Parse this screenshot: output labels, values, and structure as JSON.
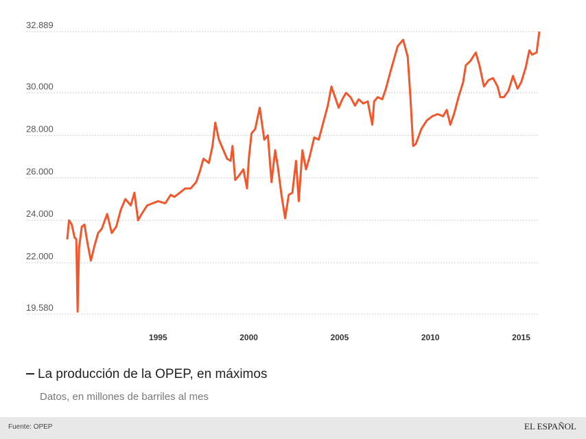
{
  "chart_data": {
    "type": "line",
    "title": "La producción de la OPEP, en máximos",
    "subtitle": "Datos, en millones de barriles al mes",
    "source": "Fuente: OPEP",
    "brand": "EL ESPAÑOL",
    "color": "#f2562a",
    "grid": true,
    "xlim": [
      1990,
      2016
    ],
    "xticks": [
      1995,
      2000,
      2005,
      2010,
      2015
    ],
    "ylim": [
      19580,
      32889
    ],
    "yticks": [
      {
        "value": 19580,
        "label": "19.580"
      },
      {
        "value": 22000,
        "label": "22.000"
      },
      {
        "value": 24000,
        "label": "24.000"
      },
      {
        "value": 26000,
        "label": "26.000"
      },
      {
        "value": 28000,
        "label": "28.000"
      },
      {
        "value": 30000,
        "label": "30.000"
      },
      {
        "value": 32889,
        "label": "32.889"
      }
    ],
    "x": [
      1990.0,
      1990.1,
      1990.25,
      1990.4,
      1990.5,
      1990.57,
      1990.65,
      1990.8,
      1990.95,
      1991.1,
      1991.3,
      1991.5,
      1991.7,
      1991.9,
      1992.2,
      1992.45,
      1992.7,
      1992.95,
      1993.2,
      1993.5,
      1993.7,
      1993.9,
      1994.1,
      1994.4,
      1994.7,
      1995.0,
      1995.4,
      1995.7,
      1995.9,
      1996.2,
      1996.5,
      1996.8,
      1997.1,
      1997.3,
      1997.5,
      1997.8,
      1998.0,
      1998.15,
      1998.35,
      1998.6,
      1998.8,
      1999.0,
      1999.1,
      1999.25,
      1999.45,
      1999.7,
      1999.9,
      2000.0,
      2000.15,
      2000.35,
      2000.6,
      2000.85,
      2001.05,
      2001.25,
      2001.45,
      2001.6,
      2001.8,
      2002.0,
      2002.2,
      2002.4,
      2002.6,
      2002.75,
      2002.95,
      2003.15,
      2003.35,
      2003.6,
      2003.85,
      2004.1,
      2004.35,
      2004.55,
      2004.75,
      2004.95,
      2005.15,
      2005.35,
      2005.6,
      2005.85,
      2006.05,
      2006.3,
      2006.55,
      2006.8,
      2006.9,
      2007.1,
      2007.35,
      2007.55,
      2007.8,
      2008.0,
      2008.2,
      2008.5,
      2008.75,
      2008.9,
      2009.05,
      2009.2,
      2009.5,
      2009.8,
      2010.1,
      2010.4,
      2010.7,
      2010.9,
      2011.1,
      2011.3,
      2011.55,
      2011.8,
      2011.95,
      2012.2,
      2012.5,
      2012.7,
      2012.95,
      2013.2,
      2013.45,
      2013.7,
      2013.85,
      2014.05,
      2014.3,
      2014.55,
      2014.8,
      2015.0,
      2015.25,
      2015.45,
      2015.6,
      2015.85,
      2016.0
    ],
    "values": [
      23100,
      24000,
      23800,
      23200,
      23100,
      19700,
      22700,
      23700,
      23800,
      23000,
      22100,
      22800,
      23400,
      23600,
      24300,
      23400,
      23700,
      24500,
      25000,
      24700,
      25300,
      24000,
      24300,
      24700,
      24800,
      24900,
      24800,
      25200,
      25100,
      25300,
      25500,
      25500,
      25800,
      26300,
      26900,
      26700,
      27500,
      28600,
      27800,
      27300,
      26900,
      26800,
      27500,
      25900,
      26100,
      26400,
      25500,
      26900,
      28100,
      28300,
      29300,
      27800,
      28000,
      25800,
      27300,
      26500,
      25200,
      24100,
      25200,
      25300,
      26800,
      24900,
      27300,
      26400,
      27000,
      27900,
      27800,
      28600,
      29400,
      30300,
      29800,
      29300,
      29700,
      30000,
      29800,
      29400,
      29700,
      29500,
      29600,
      28500,
      29600,
      29800,
      29700,
      30200,
      31000,
      31600,
      32200,
      32500,
      31700,
      29800,
      27500,
      27600,
      28300,
      28700,
      28900,
      29000,
      28900,
      29200,
      28500,
      29000,
      29800,
      30500,
      31300,
      31500,
      31900,
      31300,
      30300,
      30600,
      30700,
      30300,
      29800,
      29800,
      30100,
      30800,
      30200,
      30500,
      31200,
      32000,
      31800,
      31900,
      32889
    ]
  }
}
